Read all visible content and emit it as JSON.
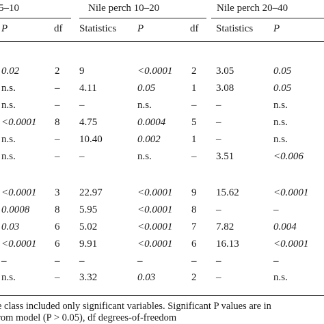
{
  "groups": {
    "g1_label": "5–10",
    "g2_label": "Nile perch 10–20",
    "g3_label": "Nile perch 20–40"
  },
  "subheaders": {
    "p1": "P",
    "df1": "df",
    "stat2": "Statistics",
    "p2": "P",
    "df2": "df",
    "stat3": "Statistics",
    "p3": "P"
  },
  "table": {
    "rows": [
      [
        "0.02",
        "2",
        "9",
        "<0.0001",
        "2",
        "3.05",
        "0.05"
      ],
      [
        "n.s.",
        "–",
        "4.11",
        "0.05",
        "1",
        "3.08",
        "0.05"
      ],
      [
        "n.s.",
        "–",
        "–",
        "n.s.",
        "–",
        "–",
        "n.s."
      ],
      [
        "<0.0001",
        "8",
        "4.75",
        "0.0004",
        "5",
        "–",
        "n.s."
      ],
      [
        "n.s.",
        "–",
        "10.40",
        "0.002",
        "1",
        "–",
        "n.s."
      ],
      [
        "n.s.",
        "–",
        "–",
        "n.s.",
        "–",
        "3.51",
        "<0.006"
      ],
      [
        "<0.0001",
        "3",
        "22.97",
        "<0.0001",
        "9",
        "15.62",
        "<0.0001"
      ],
      [
        "0.0008",
        "8",
        "5.95",
        "<0.0001",
        "8",
        "–",
        "–"
      ],
      [
        "0.03",
        "6",
        "5.02",
        "<0.0001",
        "7",
        "7.82",
        "0.004"
      ],
      [
        "<0.0001",
        "6",
        "9.91",
        "<0.0001",
        "6",
        "16.13",
        "<0.0001"
      ],
      [
        "–",
        "–",
        "–",
        "–",
        "–",
        "–",
        "–"
      ],
      [
        "n.s.",
        "–",
        "3.32",
        "0.03",
        "2",
        "–",
        "n.s."
      ]
    ]
  },
  "footnote": {
    "line1": "e class included only significant variables. Significant P values are in",
    "line2": "rom model (P > 0.05), df degrees-of-freedom"
  }
}
